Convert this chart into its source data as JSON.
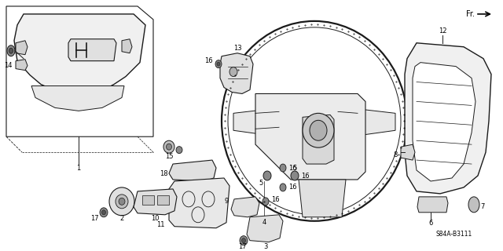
{
  "bg": "#ffffff",
  "lc": "#1a1a1a",
  "fig_w": 6.4,
  "fig_h": 3.2,
  "dpi": 100,
  "diagram_code": "S84A-B3111",
  "fr_label": "Fr.",
  "label_fs": 6.0
}
